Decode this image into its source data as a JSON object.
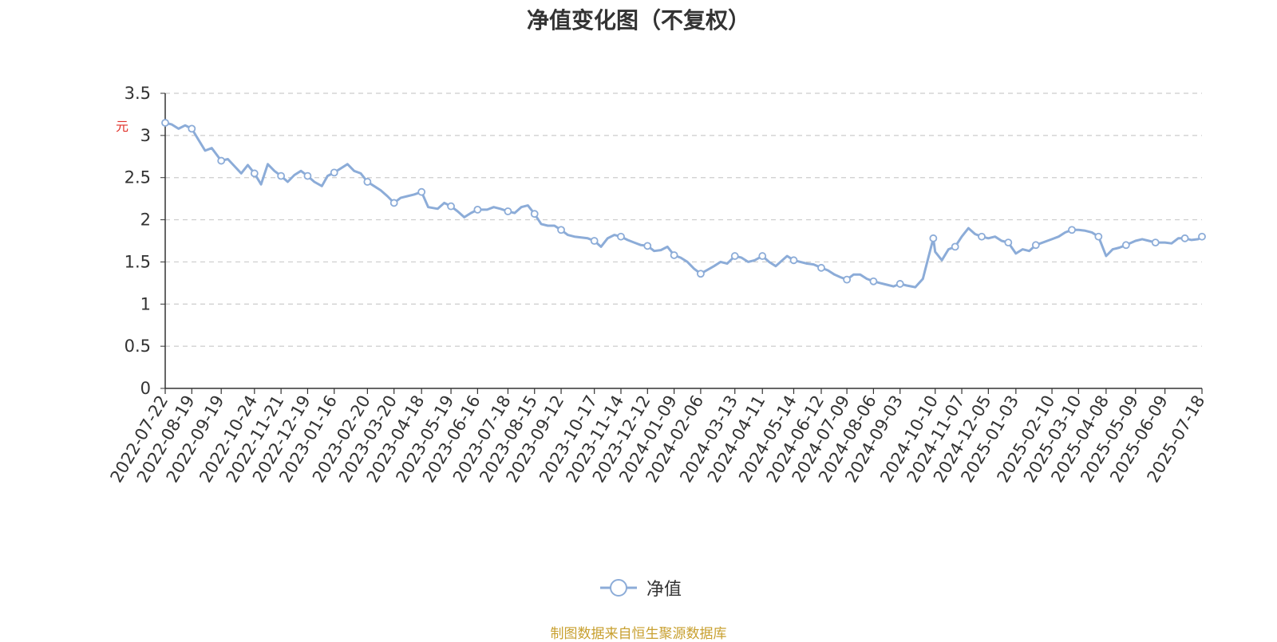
{
  "title": "净值变化图（不复权）",
  "source_note": "制图数据来自恒生聚源数据库",
  "colors": {
    "line": "#8cacd8",
    "grid": "#cccccc",
    "axis": "#333333",
    "unit": "#e0312a",
    "source": "#c8a030"
  },
  "chart_data": {
    "type": "line",
    "title": "净值变化图（不复权）",
    "ylabel": "元",
    "ylim": [
      0,
      3.5
    ],
    "y_ticks": [
      "0",
      "0.5",
      "1",
      "1.5",
      "2",
      "2.5",
      "3",
      "3.5"
    ],
    "grid": true,
    "legend_position": "bottom",
    "x_ticks": [
      "2022-07-22",
      "2022-08-19",
      "2022-09-19",
      "2022-10-24",
      "2022-11-21",
      "2022-12-19",
      "2023-01-16",
      "2023-02-20",
      "2023-03-20",
      "2023-04-18",
      "2023-05-19",
      "2023-06-16",
      "2023-07-18",
      "2023-08-15",
      "2023-09-12",
      "2023-10-17",
      "2023-11-14",
      "2023-12-12",
      "2024-01-09",
      "2024-02-06",
      "2024-03-13",
      "2024-04-11",
      "2024-05-14",
      "2024-06-12",
      "2024-07-09",
      "2024-08-06",
      "2024-09-03",
      "2024-10-10",
      "2024-11-07",
      "2024-12-05",
      "2025-01-03",
      "2025-02-10",
      "2025-03-10",
      "2025-04-08",
      "2025-05-09",
      "2025-06-09",
      "2025-07-18"
    ],
    "series": [
      {
        "name": "净值",
        "x": [
          "2022-07-22",
          "2022-07-29",
          "2022-08-05",
          "2022-08-12",
          "2022-08-19",
          "2022-08-26",
          "2022-09-02",
          "2022-09-09",
          "2022-09-19",
          "2022-09-26",
          "2022-10-10",
          "2022-10-17",
          "2022-10-24",
          "2022-10-31",
          "2022-11-07",
          "2022-11-14",
          "2022-11-21",
          "2022-11-28",
          "2022-12-05",
          "2022-12-12",
          "2022-12-19",
          "2022-12-26",
          "2023-01-03",
          "2023-01-09",
          "2023-01-16",
          "2023-01-30",
          "2023-02-06",
          "2023-02-13",
          "2023-02-20",
          "2023-02-27",
          "2023-03-06",
          "2023-03-13",
          "2023-03-20",
          "2023-03-27",
          "2023-04-03",
          "2023-04-10",
          "2023-04-18",
          "2023-04-25",
          "2023-05-05",
          "2023-05-12",
          "2023-05-19",
          "2023-05-26",
          "2023-06-02",
          "2023-06-09",
          "2023-06-16",
          "2023-06-26",
          "2023-07-03",
          "2023-07-10",
          "2023-07-18",
          "2023-07-25",
          "2023-08-01",
          "2023-08-08",
          "2023-08-15",
          "2023-08-22",
          "2023-08-29",
          "2023-09-05",
          "2023-09-12",
          "2023-09-19",
          "2023-09-26",
          "2023-10-10",
          "2023-10-17",
          "2023-10-24",
          "2023-10-31",
          "2023-11-07",
          "2023-11-14",
          "2023-11-21",
          "2023-11-28",
          "2023-12-05",
          "2023-12-12",
          "2023-12-19",
          "2023-12-26",
          "2024-01-02",
          "2024-01-09",
          "2024-01-16",
          "2024-01-23",
          "2024-01-30",
          "2024-02-06",
          "2024-02-20",
          "2024-02-27",
          "2024-03-05",
          "2024-03-13",
          "2024-03-20",
          "2024-03-27",
          "2024-04-03",
          "2024-04-11",
          "2024-04-18",
          "2024-04-25",
          "2024-05-07",
          "2024-05-14",
          "2024-05-21",
          "2024-05-28",
          "2024-06-04",
          "2024-06-12",
          "2024-06-19",
          "2024-06-26",
          "2024-07-02",
          "2024-07-09",
          "2024-07-16",
          "2024-07-23",
          "2024-07-30",
          "2024-08-06",
          "2024-08-13",
          "2024-08-20",
          "2024-08-27",
          "2024-09-03",
          "2024-09-10",
          "2024-09-19",
          "2024-09-27",
          "2024-10-08",
          "2024-10-10",
          "2024-10-17",
          "2024-10-24",
          "2024-10-31",
          "2024-11-07",
          "2024-11-14",
          "2024-11-21",
          "2024-11-28",
          "2024-12-05",
          "2024-12-12",
          "2024-12-19",
          "2024-12-26",
          "2025-01-03",
          "2025-01-10",
          "2025-01-17",
          "2025-01-24",
          "2025-02-10",
          "2025-02-17",
          "2025-02-24",
          "2025-03-03",
          "2025-03-10",
          "2025-03-17",
          "2025-03-24",
          "2025-03-31",
          "2025-04-08",
          "2025-04-15",
          "2025-04-22",
          "2025-04-29",
          "2025-05-09",
          "2025-05-16",
          "2025-05-23",
          "2025-05-30",
          "2025-06-09",
          "2025-06-16",
          "2025-06-23",
          "2025-06-30",
          "2025-07-07",
          "2025-07-14",
          "2025-07-18"
        ],
        "values": [
          3.15,
          3.13,
          3.08,
          3.12,
          3.08,
          2.95,
          2.82,
          2.85,
          2.7,
          2.72,
          2.55,
          2.65,
          2.55,
          2.42,
          2.66,
          2.58,
          2.52,
          2.45,
          2.53,
          2.58,
          2.52,
          2.45,
          2.4,
          2.52,
          2.56,
          2.66,
          2.58,
          2.55,
          2.45,
          2.4,
          2.35,
          2.28,
          2.2,
          2.26,
          2.28,
          2.3,
          2.33,
          2.15,
          2.13,
          2.2,
          2.16,
          2.1,
          2.03,
          2.08,
          2.12,
          2.12,
          2.15,
          2.13,
          2.1,
          2.08,
          2.15,
          2.17,
          2.07,
          1.95,
          1.93,
          1.93,
          1.88,
          1.82,
          1.8,
          1.78,
          1.75,
          1.68,
          1.78,
          1.82,
          1.8,
          1.76,
          1.73,
          1.7,
          1.69,
          1.63,
          1.64,
          1.68,
          1.58,
          1.55,
          1.5,
          1.42,
          1.36,
          1.45,
          1.5,
          1.48,
          1.57,
          1.55,
          1.5,
          1.52,
          1.57,
          1.5,
          1.45,
          1.57,
          1.52,
          1.5,
          1.48,
          1.47,
          1.43,
          1.4,
          1.35,
          1.32,
          1.29,
          1.35,
          1.35,
          1.3,
          1.27,
          1.25,
          1.23,
          1.21,
          1.24,
          1.22,
          1.2,
          1.3,
          1.78,
          1.62,
          1.52,
          1.65,
          1.68,
          1.8,
          1.9,
          1.83,
          1.8,
          1.78,
          1.8,
          1.75,
          1.73,
          1.6,
          1.65,
          1.63,
          1.7,
          1.77,
          1.8,
          1.85,
          1.88,
          1.88,
          1.87,
          1.85,
          1.8,
          1.57,
          1.65,
          1.67,
          1.7,
          1.75,
          1.77,
          1.75,
          1.73,
          1.73,
          1.72,
          1.78,
          1.78,
          1.76,
          1.77,
          1.8
        ]
      }
    ]
  }
}
